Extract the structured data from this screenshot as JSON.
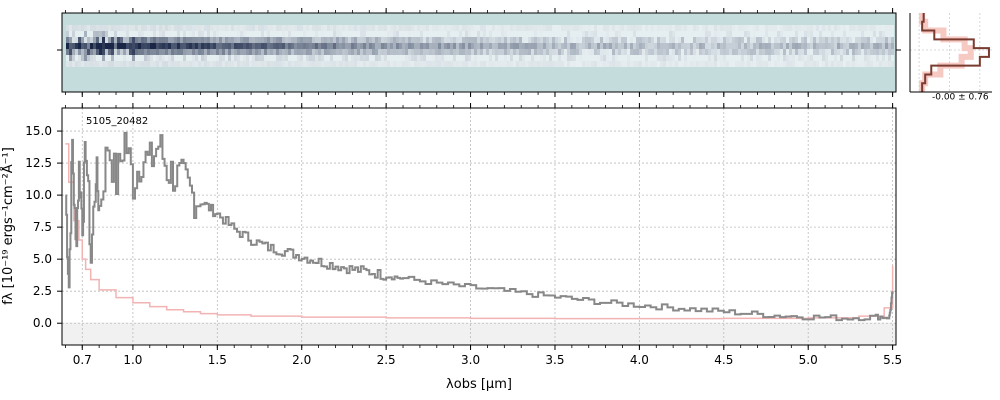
{
  "chart_data": [
    {
      "type": "heatmap",
      "panel": "2d-spectrum",
      "background_color": "#c5dcdc",
      "trace_color": "#1a2a4a",
      "trace_profile": [
        0.0,
        0.55,
        1.0,
        0.6,
        0.1
      ],
      "trace_strength_vs_wavelength": [
        [
          0.6,
          0.9
        ],
        [
          0.95,
          1.0
        ],
        [
          1.5,
          0.75
        ],
        [
          2.5,
          0.45
        ],
        [
          3.5,
          0.3
        ],
        [
          4.5,
          0.25
        ],
        [
          5.5,
          0.3
        ]
      ]
    },
    {
      "type": "line",
      "panel": "spatial-profile",
      "annotation": "-0.00 ± 0.76",
      "xlim": [
        -0.3,
        2.4
      ],
      "ylim": [
        -3.5,
        3.5
      ],
      "profile_values": [
        0.15,
        0.1,
        0.5,
        1.8,
        2.3,
        2.0,
        0.4,
        0.2,
        0.1
      ],
      "model_values": [
        0.1,
        0.2,
        0.8,
        1.5,
        1.7,
        1.4,
        0.7,
        0.2,
        0.1
      ],
      "colors": {
        "profile": "#7a3b30",
        "model": "#f6c9c3"
      }
    },
    {
      "type": "line",
      "panel": "1d-spectrum",
      "object_label": "5105_20482",
      "xlabel": "λobs [μm]",
      "ylabel": "fλ [10⁻¹⁹ ergs⁻¹cm⁻²Å⁻¹]",
      "xticks": [
        0.7,
        1.0,
        1.5,
        2.0,
        2.5,
        3.0,
        3.5,
        4.0,
        4.5,
        5.0,
        5.5
      ],
      "yticks": [
        0.0,
        2.5,
        5.0,
        7.5,
        10.0,
        12.5,
        15.0
      ],
      "xlim": [
        0.58,
        5.52
      ],
      "ylim": [
        -1.7,
        16.8
      ],
      "grid": true,
      "series": [
        {
          "role": "flux",
          "color": "#888888",
          "x": [
            0.6,
            0.62,
            0.64,
            0.66,
            0.68,
            0.7,
            0.72,
            0.75,
            0.78,
            0.8,
            0.85,
            0.9,
            0.95,
            1.0,
            1.05,
            1.1,
            1.15,
            1.2,
            1.25,
            1.3,
            1.35,
            1.4,
            1.45,
            1.5,
            1.6,
            1.7,
            1.8,
            1.9,
            2.0,
            2.1,
            2.2,
            2.3,
            2.4,
            2.5,
            2.6,
            2.8,
            3.0,
            3.2,
            3.4,
            3.6,
            3.8,
            4.0,
            4.2,
            4.4,
            4.6,
            4.8,
            5.0,
            5.2,
            5.4,
            5.48,
            5.5
          ],
          "y": [
            10.0,
            3.0,
            14.0,
            6.0,
            12.0,
            8.0,
            14.0,
            5.0,
            12.0,
            9.0,
            14.0,
            11.0,
            14.5,
            11.0,
            13.0,
            12.5,
            14.0,
            12.0,
            11.5,
            11.0,
            10.0,
            9.5,
            9.0,
            8.5,
            7.3,
            6.5,
            5.9,
            5.6,
            5.2,
            4.8,
            4.5,
            4.2,
            4.0,
            3.7,
            3.5,
            3.1,
            2.8,
            2.5,
            2.2,
            1.9,
            1.6,
            1.4,
            1.2,
            1.0,
            0.8,
            0.6,
            0.5,
            0.4,
            0.5,
            0.5,
            2.5
          ]
        },
        {
          "role": "error",
          "color": "#f2b3b3",
          "x": [
            0.6,
            0.62,
            0.65,
            0.68,
            0.7,
            0.72,
            0.75,
            0.8,
            0.9,
            1.0,
            1.1,
            1.2,
            1.3,
            1.4,
            1.5,
            1.7,
            2.0,
            2.5,
            3.0,
            3.5,
            4.0,
            4.5,
            5.0,
            5.3,
            5.45,
            5.5
          ],
          "y": [
            14.0,
            11.0,
            8.0,
            6.5,
            5.0,
            4.2,
            3.4,
            2.6,
            2.0,
            1.6,
            1.3,
            1.05,
            0.9,
            0.75,
            0.65,
            0.55,
            0.48,
            0.42,
            0.38,
            0.36,
            0.36,
            0.38,
            0.42,
            0.55,
            1.2,
            4.5
          ]
        }
      ]
    }
  ]
}
